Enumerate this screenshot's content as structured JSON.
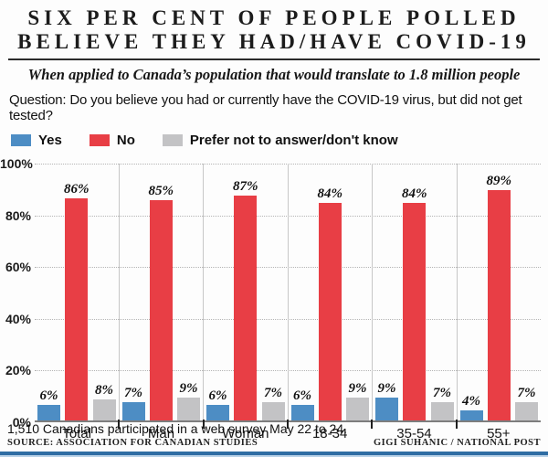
{
  "header": {
    "title_line1": "SIX PER CENT OF PEOPLE POLLED",
    "title_line2": "BELIEVE THEY HAD/HAVE COVID-19",
    "subtitle": "When applied to Canada’s population that would translate to 1.8 million people",
    "question": "Question:  Do you believe you had or currently have the COVID-19 virus, but did not get tested?"
  },
  "legend": [
    {
      "label": "Yes",
      "color": "#4d8dc4"
    },
    {
      "label": "No",
      "color": "#e83e45"
    },
    {
      "label": "Prefer not to answer/don't know",
      "color": "#c3c3c5"
    }
  ],
  "chart_data": {
    "type": "bar",
    "title": "Do you believe you had or currently have the COVID-19 virus, but did not get tested?",
    "categories": [
      "Total",
      "Man",
      "Woman",
      "18-34",
      "35-54",
      "55+"
    ],
    "series": [
      {
        "name": "Yes",
        "color": "#4d8dc4",
        "values": [
          6,
          7,
          6,
          6,
          9,
          4
        ]
      },
      {
        "name": "No",
        "color": "#e83e45",
        "values": [
          86,
          85,
          87,
          84,
          84,
          89
        ]
      },
      {
        "name": "Prefer not to answer/don't know",
        "color": "#c3c3c5",
        "values": [
          8,
          9,
          7,
          9,
          7,
          7
        ]
      }
    ],
    "xlabel": "",
    "ylabel": "",
    "ylim": [
      0,
      100
    ],
    "yticks": [
      100,
      80,
      60,
      40,
      20,
      0
    ],
    "ytick_suffix": "%",
    "value_label_suffix": "%",
    "grid": "horizontal-dotted",
    "group_separators": true,
    "legend_position": "top-left"
  },
  "footer": {
    "note": "1,510 Canadians participated in a web survey May 22 to 24.",
    "source": "SOURCE: ASSOCIATION FOR CANADIAN STUDIES",
    "credit": "GIGI SUHANIC / NATIONAL POST"
  },
  "colors": {
    "yes_blue": "#4d8dc4",
    "no_red": "#e83e45",
    "neutral_gray": "#c3c3c5",
    "stripe_blue": "#2f6da4",
    "stripe_light_blue": "#b9d2e8",
    "gridline": "#b4b4b4",
    "axis": "#7d7d7d"
  }
}
